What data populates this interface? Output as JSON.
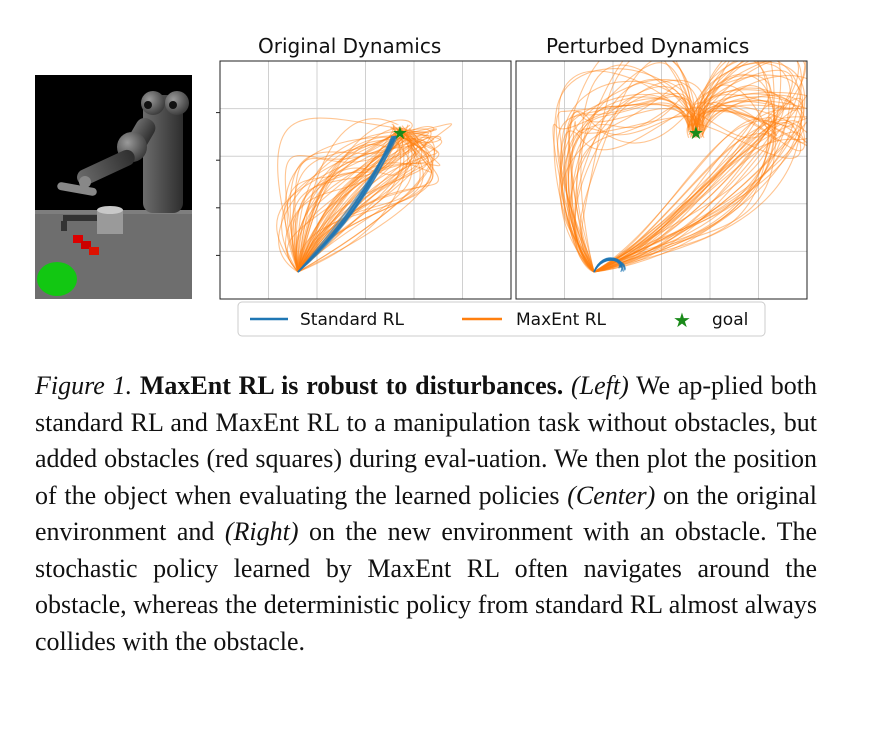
{
  "plots": {
    "left_title": "Original Dynamics",
    "right_title": "Perturbed Dynamics",
    "legend": [
      "Standard RL",
      "MaxEnt RL",
      "goal"
    ],
    "colors": {
      "standard": "#1f77b4",
      "maxent": "#ff7f0e",
      "goal": "#1a8a1a"
    }
  },
  "caption": {
    "label": "Figure 1.",
    "title": "MaxEnt RL is robust to disturbances.",
    "left": "(Left)",
    "text1": " We ap-plied both standard RL and MaxEnt RL to a manipulation task without obstacles, but added obstacles (red squares) during eval-uation. We then plot the position of the object when evaluating the learned policies ",
    "center": "(Center)",
    "text2": " on the original environment and ",
    "right": "(Right)",
    "text3": " on the new environment with an obstacle. The stochastic policy learned by MaxEnt RL often navigates around the obstacle, whereas the deterministic policy from standard RL almost always collides with the obstacle."
  }
}
